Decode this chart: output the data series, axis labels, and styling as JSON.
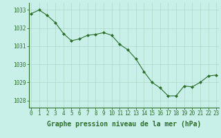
{
  "hours": [
    0,
    1,
    2,
    3,
    4,
    5,
    6,
    7,
    8,
    9,
    10,
    11,
    12,
    13,
    14,
    15,
    16,
    17,
    18,
    19,
    20,
    21,
    22,
    23
  ],
  "pressure": [
    1032.8,
    1033.0,
    1032.7,
    1032.3,
    1031.7,
    1031.3,
    1031.4,
    1031.6,
    1031.65,
    1031.75,
    1031.6,
    1031.1,
    1030.8,
    1030.3,
    1029.6,
    1029.0,
    1028.7,
    1028.25,
    1028.25,
    1028.8,
    1028.75,
    1029.0,
    1029.35,
    1029.4
  ],
  "line_color": "#2d6e2d",
  "marker": "D",
  "marker_size": 2,
  "bg_color": "#c8f0e8",
  "grid_color": "#b0d8c8",
  "ylabel_ticks": [
    1028,
    1029,
    1030,
    1031,
    1032,
    1033
  ],
  "xlabel_ticks": [
    0,
    1,
    2,
    3,
    4,
    5,
    6,
    7,
    8,
    9,
    10,
    11,
    12,
    13,
    14,
    15,
    16,
    17,
    18,
    19,
    20,
    21,
    22,
    23
  ],
  "ylim": [
    1027.6,
    1033.4
  ],
  "xlim": [
    -0.3,
    23.3
  ],
  "xlabel": "Graphe pression niveau de la mer (hPa)",
  "xlabel_fontsize": 7,
  "tick_fontsize": 5.5,
  "tick_color": "#2d6e2d",
  "spine_color": "#2d6e2d",
  "linewidth": 0.8
}
